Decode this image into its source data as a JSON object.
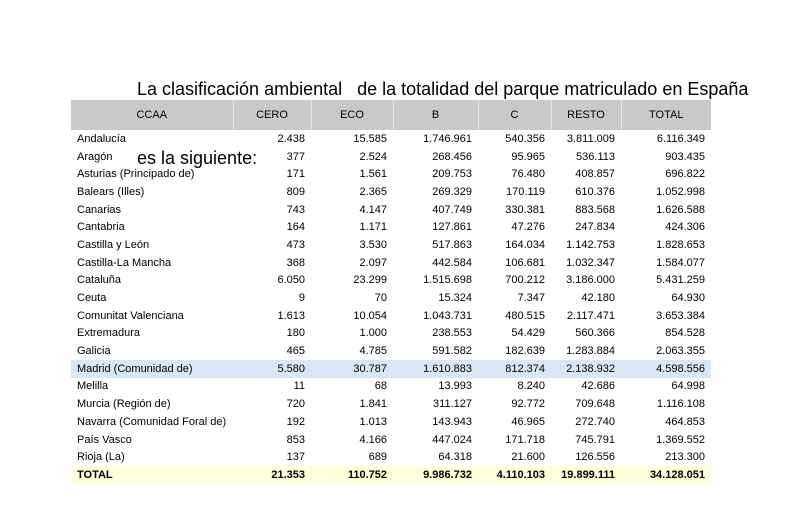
{
  "header": {
    "title_lines": [
      "La clasificación ambiental   de la totalidad del parque matriculado en España",
      "es la siguiente:"
    ]
  },
  "table": {
    "columns": [
      "CCAA",
      "CERO",
      "ECO",
      "B",
      "C",
      "RESTO",
      "TOTAL"
    ],
    "rows": [
      [
        "Andalucía",
        "2.438",
        "15.585",
        "1.746.961",
        "540.356",
        "3.811.009",
        "6.116.349"
      ],
      [
        "Aragón",
        "377",
        "2.524",
        "268.456",
        "95.965",
        "536.113",
        "903.435"
      ],
      [
        "Asturias (Principado de)",
        "171",
        "1.561",
        "209.753",
        "76.480",
        "408.857",
        "696.822"
      ],
      [
        "Balears (Illes)",
        "809",
        "2.365",
        "269.329",
        "170.119",
        "610.376",
        "1.052.998"
      ],
      [
        "Canarias",
        "743",
        "4.147",
        "407.749",
        "330.381",
        "883.568",
        "1.626.588"
      ],
      [
        "Cantabria",
        "164",
        "1.171",
        "127.861",
        "47.276",
        "247.834",
        "424.306"
      ],
      [
        "Castilla y León",
        "473",
        "3.530",
        "517.863",
        "164.034",
        "1.142.753",
        "1.828.653"
      ],
      [
        "Castilla-La Mancha",
        "368",
        "2.097",
        "442.584",
        "106.681",
        "1.032.347",
        "1.584.077"
      ],
      [
        "Cataluña",
        "6.050",
        "23.299",
        "1.515.698",
        "700.212",
        "3.186.000",
        "5.431.259"
      ],
      [
        "Ceuta",
        "9",
        "70",
        "15.324",
        "7.347",
        "42.180",
        "64.930"
      ],
      [
        "Comunitat Valenciana",
        "1.613",
        "10.054",
        "1.043.731",
        "480.515",
        "2.117.471",
        "3.653.384"
      ],
      [
        "Extremadura",
        "180",
        "1.000",
        "238.553",
        "54.429",
        "560.366",
        "854.528"
      ],
      [
        "Galicia",
        "465",
        "4.785",
        "591.582",
        "182.639",
        "1.283.884",
        "2.063.355"
      ],
      [
        "Madrid (Comunidad de)",
        "5.580",
        "30.787",
        "1.610.883",
        "812.374",
        "2.138.932",
        "4.598.556"
      ],
      [
        "Melilla",
        "11",
        "68",
        "13.993",
        "8.240",
        "42.686",
        "64.998"
      ],
      [
        "Murcia (Región de)",
        "720",
        "1.841",
        "311.127",
        "92.772",
        "709.648",
        "1.116.108"
      ],
      [
        "Navarra (Comunidad Foral de)",
        "192",
        "1.013",
        "143.943",
        "46.965",
        "272.740",
        "464.853"
      ],
      [
        "País Vasco",
        "853",
        "4.166",
        "447.024",
        "171.718",
        "745.791",
        "1.369.552"
      ],
      [
        "Rioja (La)",
        "137",
        "689",
        "64.318",
        "21.600",
        "126.556",
        "213.300"
      ]
    ],
    "total": [
      "TOTAL",
      "21.353",
      "110.752",
      "9.986.732",
      "4.110.103",
      "19.899.111",
      "34.128.051"
    ],
    "highlighted_row": 13
  }
}
